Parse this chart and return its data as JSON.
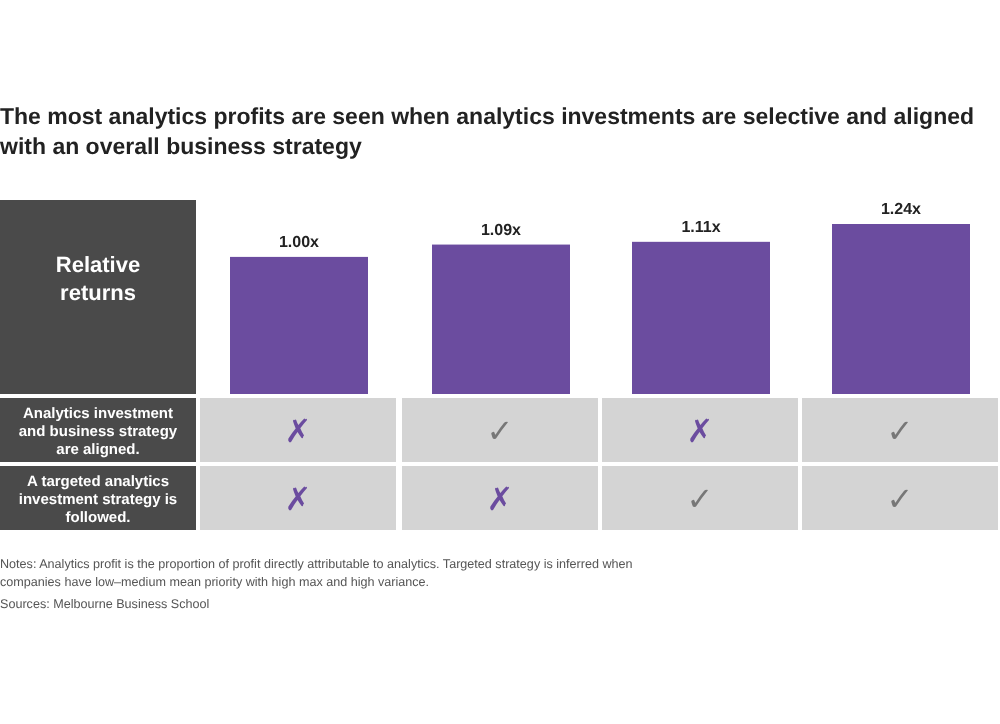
{
  "chart_data": [
    {
      "type": "bar",
      "title": "The most analytics profits are seen when analytics investments are selective and aligned with an overall business strategy",
      "ylabel": "Relative returns",
      "categories": [
        null,
        null,
        null,
        null
      ],
      "values": [
        1.0,
        1.09,
        1.11,
        1.24
      ],
      "value_labels": [
        "1.00x",
        "1.09x",
        "1.11x",
        "1.24x"
      ],
      "color": "#6b4c9f"
    },
    {
      "type": "other",
      "categories": [
        null,
        null,
        null,
        null
      ],
      "y_categories": [
        "Analytics investment and business strategy are aligned.",
        "A targeted analytics investment strategy is followed."
      ],
      "colors": [
        [
          "#6b4c9f",
          "#777777",
          "#6b4c9f",
          "#777777"
        ],
        [
          "#6b4c9f",
          "#6b4c9f",
          "#777777",
          "#777777"
        ]
      ],
      "cell_labels": [
        [
          "✗",
          "✓",
          "✗",
          "✓"
        ],
        [
          "✗",
          "✗",
          "✓",
          "✓"
        ]
      ],
      "annotations": [
        "Notes: Analytics profit is the proportion of profit directly attributable to analytics. Targeted strategy is inferred when companies have low–medium mean priority with high max and high variance.",
        "Sources: Melbourne Business School"
      ]
    }
  ]
}
